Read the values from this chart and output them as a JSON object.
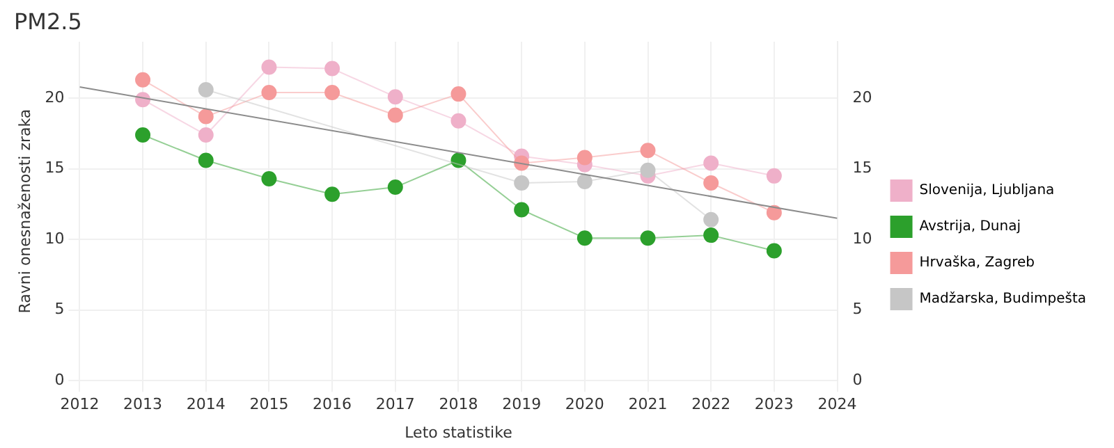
{
  "chart_data": {
    "type": "line",
    "title": "PM2.5",
    "xlabel": "Leto statistike",
    "ylabel": "Ravni onesnaženosti zraka",
    "x": [
      2013,
      2014,
      2015,
      2016,
      2017,
      2018,
      2019,
      2020,
      2021,
      2022,
      2023
    ],
    "xlim": [
      2012,
      2024
    ],
    "xticks": [
      2012,
      2013,
      2014,
      2015,
      2016,
      2017,
      2018,
      2019,
      2020,
      2021,
      2022,
      2023,
      2024
    ],
    "ylim": [
      0,
      24
    ],
    "yticks": [
      0,
      5,
      10,
      15,
      20
    ],
    "y2lim": [
      0,
      24
    ],
    "y2ticks": [
      0,
      5,
      10,
      15,
      20
    ],
    "grid": true,
    "legend": "right",
    "marker": "circle",
    "line_style": "solid",
    "series": [
      {
        "name": "Slovenija, Ljubljana",
        "color": "#efb0c9",
        "values": [
          19.9,
          17.4,
          22.2,
          22.1,
          20.1,
          18.4,
          15.9,
          15.3,
          14.5,
          15.4,
          14.5
        ]
      },
      {
        "name": "Avstrija, Dunaj",
        "color": "#2ca02c",
        "values": [
          17.4,
          15.6,
          14.3,
          13.2,
          13.7,
          15.6,
          12.1,
          10.1,
          10.1,
          10.3,
          9.2
        ]
      },
      {
        "name": "Hrvaška, Zagreb",
        "color": "#f59a9a",
        "values": [
          21.3,
          18.7,
          20.4,
          20.4,
          18.8,
          20.3,
          15.4,
          15.8,
          16.3,
          14.0,
          11.9
        ]
      },
      {
        "name": "Madžarska, Budimpešta",
        "color": "#c6c6c6",
        "values": [
          null,
          20.6,
          null,
          null,
          null,
          null,
          14.0,
          14.1,
          14.9,
          11.4,
          null
        ]
      },
      {
        "type": "line",
        "color": "#8c8c8c",
        "marker": "none",
        "x": [
          2012,
          2024
        ],
        "values": [
          20.8,
          11.5
        ]
      }
    ]
  }
}
